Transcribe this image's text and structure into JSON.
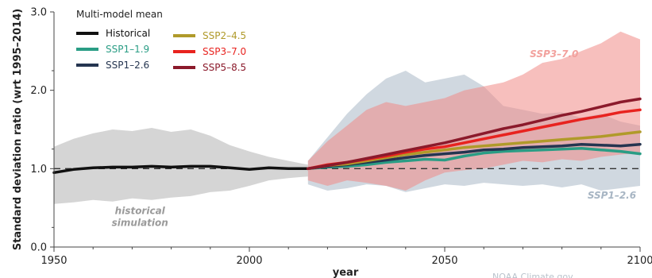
{
  "chart_data": {
    "type": "line",
    "xlabel": "year",
    "ylabel": "Standard deviation ratio (wrt 1995–2014)",
    "xlim": [
      1950,
      2100
    ],
    "ylim": [
      0.0,
      3.0
    ],
    "x_ticks": [
      "1950",
      "2000",
      "2050",
      "2100"
    ],
    "y_ticks": [
      "0.0",
      "1.0",
      "2.0",
      "3.0"
    ],
    "legend_title": "Multi-model mean",
    "legend_placement": "top-left",
    "reference_line": 1.0,
    "grid": false,
    "series": [
      {
        "name": "Historical",
        "color": "#111111",
        "x": [
          1950,
          1955,
          1960,
          1965,
          1970,
          1975,
          1980,
          1985,
          1990,
          1995,
          2000,
          2005,
          2010,
          2015
        ],
        "y": [
          0.95,
          0.99,
          1.01,
          1.02,
          1.02,
          1.03,
          1.02,
          1.03,
          1.03,
          1.01,
          0.99,
          1.01,
          1.0,
          1.0
        ]
      },
      {
        "name": "SSP1–1.9",
        "color": "#2a9d85",
        "x": [
          2015,
          2020,
          2025,
          2030,
          2035,
          2040,
          2045,
          2050,
          2055,
          2060,
          2065,
          2070,
          2075,
          2080,
          2085,
          2090,
          2095,
          2100
        ],
        "y": [
          1.0,
          1.02,
          1.03,
          1.05,
          1.08,
          1.1,
          1.12,
          1.11,
          1.16,
          1.2,
          1.22,
          1.23,
          1.24,
          1.25,
          1.26,
          1.24,
          1.22,
          1.19
        ]
      },
      {
        "name": "SSP1–2.6",
        "color": "#253550",
        "x": [
          2015,
          2020,
          2025,
          2030,
          2035,
          2040,
          2045,
          2050,
          2055,
          2060,
          2065,
          2070,
          2075,
          2080,
          2085,
          2090,
          2095,
          2100
        ],
        "y": [
          1.0,
          1.03,
          1.05,
          1.08,
          1.11,
          1.14,
          1.17,
          1.19,
          1.21,
          1.24,
          1.25,
          1.27,
          1.28,
          1.29,
          1.31,
          1.3,
          1.29,
          1.31
        ]
      },
      {
        "name": "SSP2–4.5",
        "color": "#b09a2a",
        "x": [
          2015,
          2020,
          2025,
          2030,
          2035,
          2040,
          2045,
          2050,
          2055,
          2060,
          2065,
          2070,
          2075,
          2080,
          2085,
          2090,
          2095,
          2100
        ],
        "y": [
          1.0,
          1.04,
          1.06,
          1.1,
          1.14,
          1.18,
          1.21,
          1.24,
          1.27,
          1.29,
          1.31,
          1.33,
          1.35,
          1.37,
          1.39,
          1.41,
          1.44,
          1.47
        ]
      },
      {
        "name": "SSP3–7.0",
        "color": "#e8231f",
        "x": [
          2015,
          2020,
          2025,
          2030,
          2035,
          2040,
          2045,
          2050,
          2055,
          2060,
          2065,
          2070,
          2075,
          2080,
          2085,
          2090,
          2095,
          2100
        ],
        "y": [
          1.0,
          1.05,
          1.08,
          1.12,
          1.16,
          1.21,
          1.25,
          1.28,
          1.33,
          1.38,
          1.43,
          1.48,
          1.53,
          1.58,
          1.63,
          1.67,
          1.72,
          1.75
        ]
      },
      {
        "name": "SSP5–8.5",
        "color": "#8b1a2b",
        "x": [
          2015,
          2020,
          2025,
          2030,
          2035,
          2040,
          2045,
          2050,
          2055,
          2060,
          2065,
          2070,
          2075,
          2080,
          2085,
          2090,
          2095,
          2100
        ],
        "y": [
          1.0,
          1.04,
          1.08,
          1.13,
          1.18,
          1.23,
          1.28,
          1.33,
          1.39,
          1.45,
          1.51,
          1.56,
          1.62,
          1.68,
          1.73,
          1.79,
          1.85,
          1.89
        ]
      }
    ],
    "bands": [
      {
        "label": "historical simulation",
        "color": "#b3b3b3",
        "x": [
          1950,
          1955,
          1960,
          1965,
          1970,
          1975,
          1980,
          1985,
          1990,
          1995,
          2000,
          2005,
          2010,
          2015
        ],
        "lower": [
          0.55,
          0.57,
          0.6,
          0.58,
          0.62,
          0.6,
          0.63,
          0.65,
          0.7,
          0.72,
          0.78,
          0.85,
          0.88,
          0.9
        ],
        "upper": [
          1.28,
          1.38,
          1.45,
          1.5,
          1.48,
          1.52,
          1.47,
          1.5,
          1.42,
          1.3,
          1.22,
          1.15,
          1.1,
          1.05
        ]
      },
      {
        "label": "SSP1–2.6",
        "color": "#a9b8c7",
        "x": [
          2015,
          2020,
          2025,
          2030,
          2035,
          2040,
          2045,
          2050,
          2055,
          2060,
          2065,
          2070,
          2075,
          2080,
          2085,
          2090,
          2095,
          2100
        ],
        "lower": [
          0.8,
          0.72,
          0.75,
          0.8,
          0.78,
          0.7,
          0.75,
          0.8,
          0.78,
          0.82,
          0.8,
          0.78,
          0.8,
          0.76,
          0.8,
          0.72,
          0.75,
          0.78
        ],
        "upper": [
          1.1,
          1.4,
          1.7,
          1.95,
          2.15,
          2.25,
          2.1,
          2.15,
          2.2,
          2.05,
          1.8,
          1.75,
          1.7,
          1.72,
          1.65,
          1.7,
          1.6,
          1.55
        ]
      },
      {
        "label": "SSP3–7.0",
        "color": "#f08a86",
        "x": [
          2015,
          2020,
          2025,
          2030,
          2035,
          2040,
          2045,
          2050,
          2055,
          2060,
          2065,
          2070,
          2075,
          2080,
          2085,
          2090,
          2095,
          2100
        ],
        "lower": [
          0.85,
          0.78,
          0.85,
          0.82,
          0.78,
          0.72,
          0.85,
          0.95,
          0.98,
          1.0,
          1.05,
          1.1,
          1.08,
          1.12,
          1.1,
          1.15,
          1.18,
          1.2
        ],
        "upper": [
          1.1,
          1.35,
          1.55,
          1.75,
          1.85,
          1.8,
          1.85,
          1.9,
          2.0,
          2.05,
          2.1,
          2.2,
          2.35,
          2.4,
          2.5,
          2.6,
          2.75,
          2.65
        ]
      }
    ],
    "annotations": [
      {
        "text": "SSP3–7.0",
        "color": "#f2a19d",
        "x": 2078,
        "y": 2.42,
        "anchor": "middle"
      },
      {
        "text": "SSP1–2.6",
        "color": "#a7b5c3",
        "x": 2099,
        "y": 0.62,
        "anchor": "end"
      },
      {
        "text": "historical",
        "color": "#9a9a9a",
        "x": 1972,
        "y": 0.42,
        "anchor": "middle"
      },
      {
        "text": "simulation",
        "color": "#9a9a9a",
        "x": 1972,
        "y": 0.27,
        "anchor": "middle"
      }
    ]
  },
  "footer": {
    "credit": "NOAA Climate.gov"
  }
}
